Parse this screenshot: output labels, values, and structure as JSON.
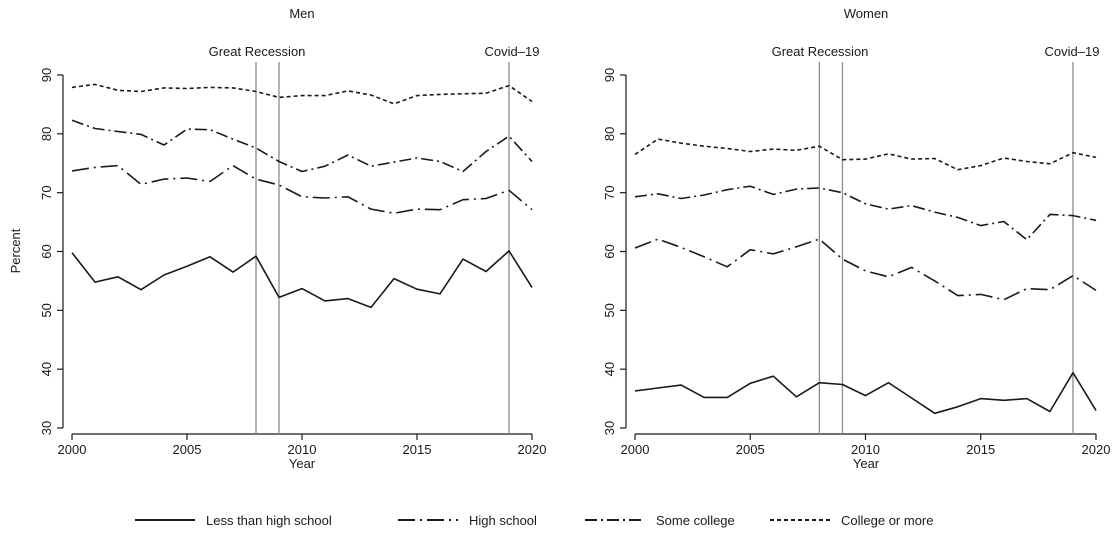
{
  "chart_data": [
    {
      "type": "line",
      "title": "Men",
      "xlabel": "Year",
      "ylabel": "Percent",
      "xlim": [
        2000,
        2020
      ],
      "ylim": [
        30,
        90
      ],
      "xticks": [
        2000,
        2005,
        2010,
        2015,
        2020
      ],
      "yticks": [
        30,
        40,
        50,
        60,
        70,
        80,
        90
      ],
      "grid": false,
      "events": [
        {
          "label": "Great Recession",
          "years": [
            2008,
            2009
          ]
        },
        {
          "label": "Covid–19",
          "years": [
            2019
          ]
        }
      ],
      "x": [
        2000,
        2001,
        2002,
        2003,
        2004,
        2005,
        2006,
        2007,
        2008,
        2009,
        2010,
        2011,
        2012,
        2013,
        2014,
        2015,
        2016,
        2017,
        2018,
        2019,
        2020
      ],
      "series": [
        {
          "name": "Less than high school",
          "values": [
            59.8,
            54.8,
            55.7,
            53.5,
            56.0,
            57.5,
            59.1,
            56.5,
            59.2,
            52.2,
            53.7,
            51.6,
            52.0,
            50.5,
            55.4,
            53.6,
            52.8,
            58.7,
            56.6,
            60.1,
            53.9
          ]
        },
        {
          "name": "High school",
          "values": [
            73.7,
            74.3,
            74.6,
            71.4,
            72.3,
            72.5,
            71.9,
            74.6,
            72.3,
            71.3,
            69.3,
            69.1,
            69.3,
            67.2,
            66.5,
            67.2,
            67.1,
            68.8,
            69.0,
            70.4,
            67.1
          ]
        },
        {
          "name": "Some college",
          "values": [
            82.3,
            80.9,
            80.4,
            79.9,
            78.1,
            80.8,
            80.7,
            79.1,
            77.6,
            75.3,
            73.6,
            74.5,
            76.4,
            74.5,
            75.2,
            75.9,
            75.3,
            73.6,
            77.0,
            79.6,
            75.3
          ]
        },
        {
          "name": "College or more",
          "values": [
            87.9,
            88.4,
            87.4,
            87.2,
            87.8,
            87.7,
            87.9,
            87.8,
            87.2,
            86.2,
            86.5,
            86.5,
            87.3,
            86.6,
            85.1,
            86.5,
            86.7,
            86.8,
            86.9,
            88.2,
            85.5
          ]
        }
      ]
    },
    {
      "type": "line",
      "title": "Women",
      "xlabel": "Year",
      "ylabel": "",
      "xlim": [
        2000,
        2020
      ],
      "ylim": [
        30,
        90
      ],
      "xticks": [
        2000,
        2005,
        2010,
        2015,
        2020
      ],
      "yticks": [
        30,
        40,
        50,
        60,
        70,
        80,
        90
      ],
      "grid": false,
      "events": [
        {
          "label": "Great Recession",
          "years": [
            2008,
            2009
          ]
        },
        {
          "label": "Covid–19",
          "years": [
            2019
          ]
        }
      ],
      "x": [
        2000,
        2001,
        2002,
        2003,
        2004,
        2005,
        2006,
        2007,
        2008,
        2009,
        2010,
        2011,
        2012,
        2013,
        2014,
        2015,
        2016,
        2017,
        2018,
        2019,
        2020
      ],
      "series": [
        {
          "name": "Less than high school",
          "values": [
            36.3,
            36.8,
            37.3,
            35.2,
            35.2,
            37.6,
            38.8,
            35.3,
            37.7,
            37.4,
            35.5,
            37.7,
            35.1,
            32.5,
            33.6,
            35.0,
            34.7,
            35.0,
            32.8,
            39.4,
            33.0
          ]
        },
        {
          "name": "High school",
          "values": [
            60.6,
            62.1,
            60.7,
            59.1,
            57.4,
            60.3,
            59.6,
            60.8,
            62.1,
            58.7,
            56.7,
            55.7,
            57.3,
            55.0,
            52.5,
            52.7,
            51.8,
            53.7,
            53.5,
            55.9,
            53.4
          ]
        },
        {
          "name": "Some college",
          "values": [
            69.3,
            69.8,
            69.0,
            69.6,
            70.5,
            71.1,
            69.7,
            70.6,
            70.8,
            70.0,
            68.1,
            67.2,
            67.8,
            66.7,
            65.8,
            64.4,
            65.1,
            62.0,
            66.3,
            66.1,
            65.3
          ]
        },
        {
          "name": "College or more",
          "values": [
            76.5,
            79.1,
            78.4,
            77.9,
            77.5,
            77.0,
            77.4,
            77.2,
            77.9,
            75.6,
            75.7,
            76.6,
            75.7,
            75.8,
            73.9,
            74.6,
            75.9,
            75.3,
            74.9,
            76.8,
            76.0
          ]
        }
      ]
    }
  ],
  "legend": {
    "placement": "bottom",
    "items": [
      {
        "label": "Less than high school",
        "dash": "solid"
      },
      {
        "label": "High school",
        "dash": "longdash"
      },
      {
        "label": "Some college",
        "dash": "dashdot"
      },
      {
        "label": "College or more",
        "dash": "shortdash"
      }
    ]
  },
  "colors": {
    "line": "#1a1a1a",
    "event_line": "#8c8c8c",
    "axis": "#1a1a1a"
  }
}
